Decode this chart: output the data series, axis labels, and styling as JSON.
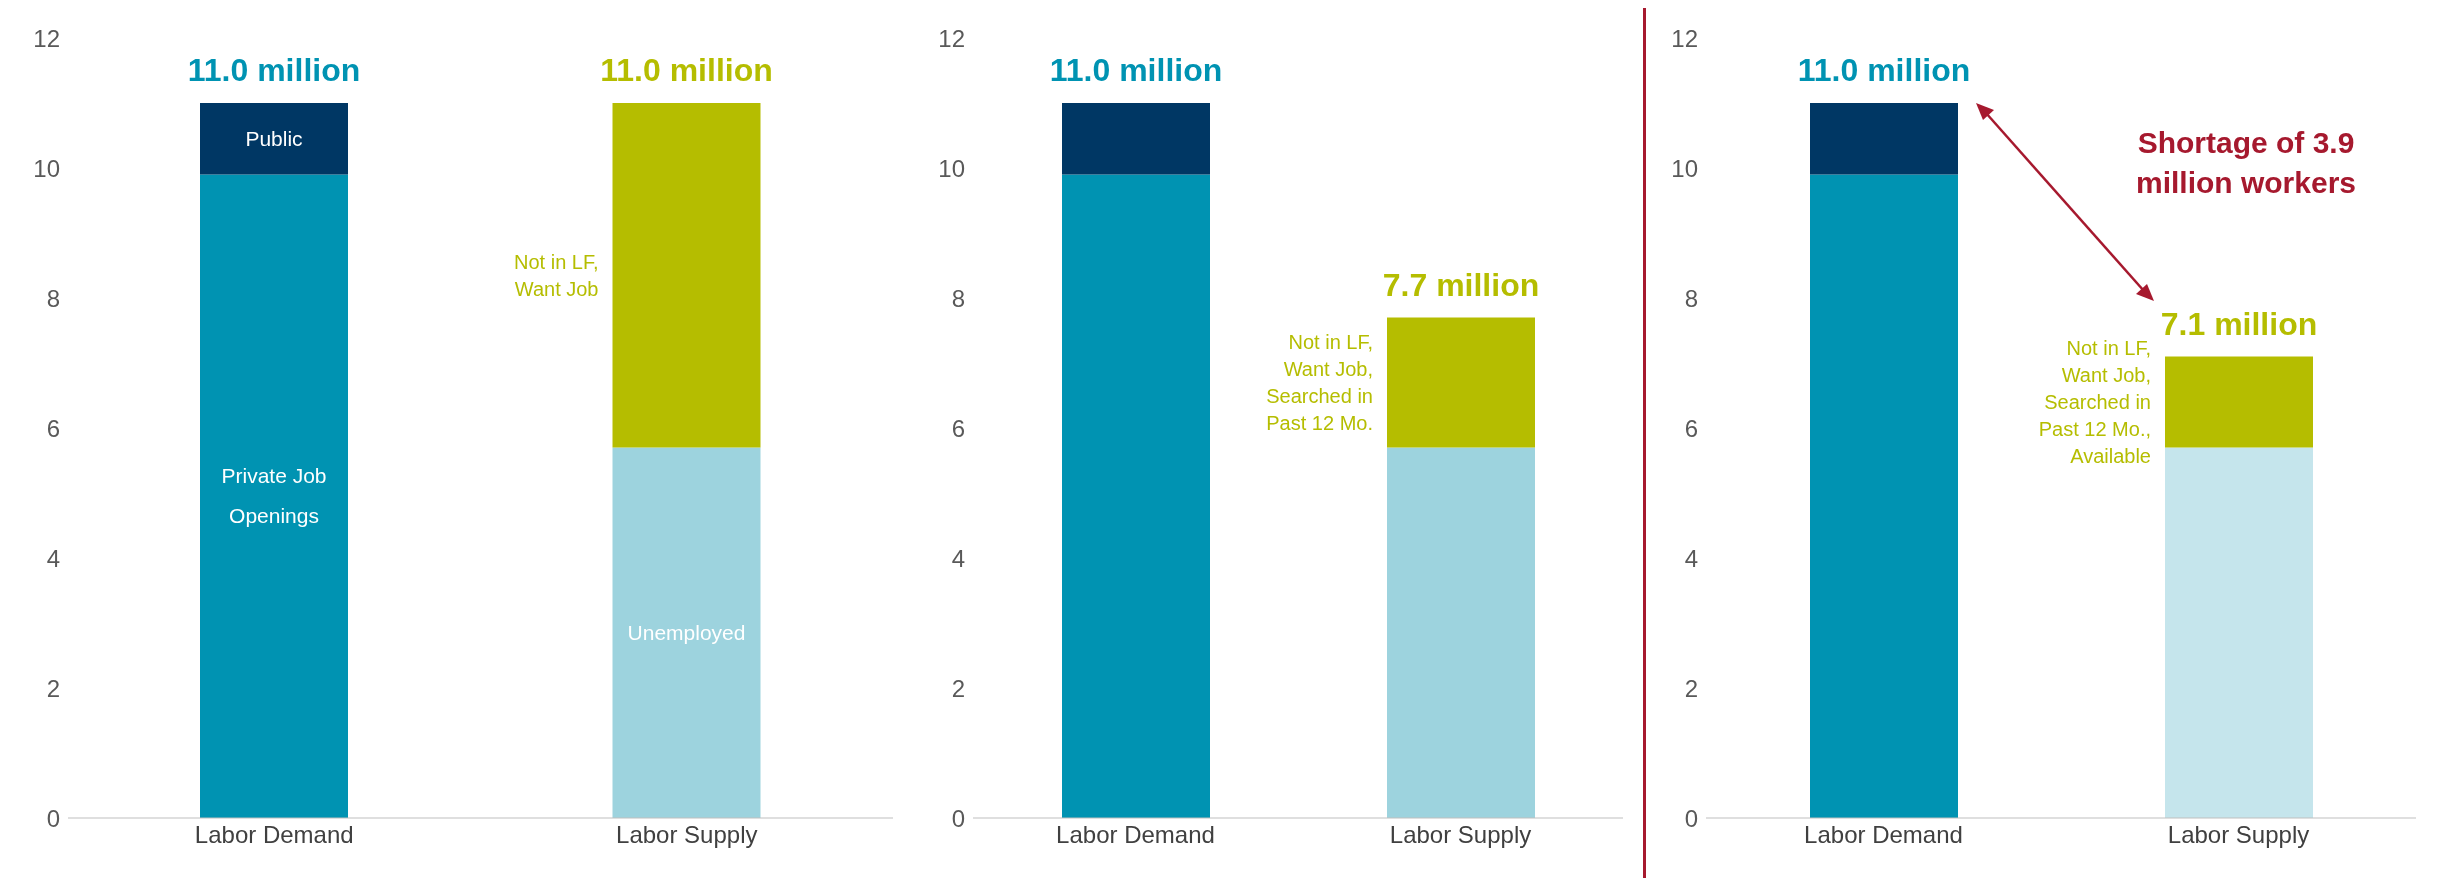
{
  "chart_data": [
    {
      "type": "bar",
      "stacked": true,
      "categories": [
        "Labor Demand",
        "Labor Supply"
      ],
      "ylim": [
        0,
        12
      ],
      "yticks": [
        0,
        2,
        4,
        6,
        8,
        10,
        12
      ],
      "grid": false,
      "legend": false,
      "totals": [
        "11.0 million",
        "11.0 million"
      ],
      "series": [
        {
          "name": "Private Job Openings",
          "color": "#0093b2",
          "values": [
            9.9,
            null
          ]
        },
        {
          "name": "Public",
          "color": "#003764",
          "values": [
            1.1,
            null
          ]
        },
        {
          "name": "Unemployed",
          "color": "#9dd3de",
          "values": [
            null,
            5.7
          ]
        },
        {
          "name": "Not in LF, Want Job",
          "color": "#b5bd00",
          "values": [
            null,
            5.3
          ]
        }
      ]
    },
    {
      "type": "bar",
      "stacked": true,
      "categories": [
        "Labor Demand",
        "Labor Supply"
      ],
      "ylim": [
        0,
        12
      ],
      "yticks": [
        0,
        2,
        4,
        6,
        8,
        10,
        12
      ],
      "grid": false,
      "legend": false,
      "totals": [
        "11.0 million",
        "7.7 million"
      ],
      "series": [
        {
          "color": "#0093b2",
          "values": [
            9.9,
            null
          ]
        },
        {
          "color": "#003764",
          "values": [
            1.1,
            null
          ]
        },
        {
          "color": "#9dd3de",
          "values": [
            null,
            5.7
          ]
        },
        {
          "name": "Not in LF, Want Job, Searched in Past 12 Mo.",
          "color": "#b5bd00",
          "values": [
            null,
            2.0
          ]
        }
      ]
    },
    {
      "type": "bar",
      "stacked": true,
      "categories": [
        "Labor Demand",
        "Labor Supply"
      ],
      "ylim": [
        0,
        12
      ],
      "yticks": [
        0,
        2,
        4,
        6,
        8,
        10,
        12
      ],
      "grid": false,
      "legend": false,
      "totals": [
        "11.0 million",
        "7.1 million"
      ],
      "annotations": [
        "Shortage of 3.9 million workers"
      ],
      "series": [
        {
          "color": "#0093b2",
          "values": [
            9.9,
            null
          ]
        },
        {
          "color": "#003764",
          "values": [
            1.1,
            null
          ]
        },
        {
          "color": "#c5e5ec",
          "values": [
            null,
            5.7
          ]
        },
        {
          "name": "Not in LF, Want Job, Searched in Past 12 Mo., Available",
          "color": "#b5bd00",
          "values": [
            null,
            1.4
          ]
        }
      ]
    }
  ]
}
